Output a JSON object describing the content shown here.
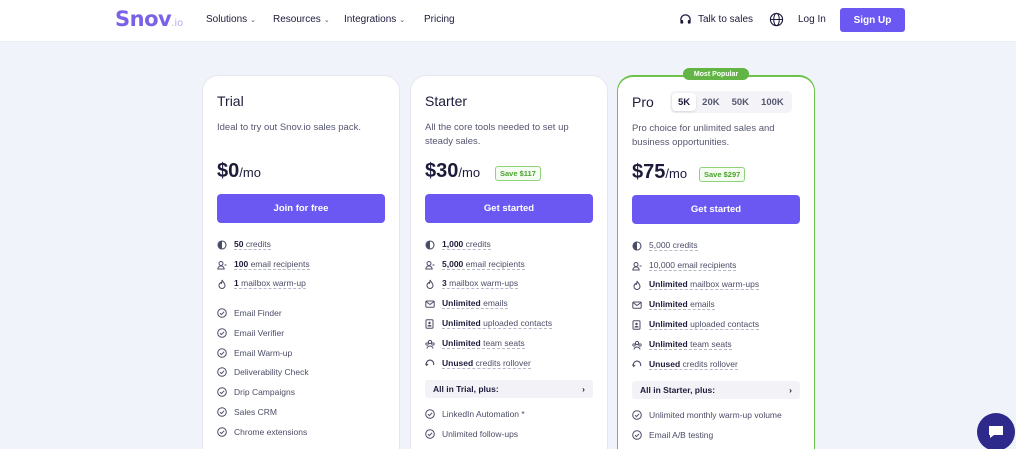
{
  "header": {
    "logo_main": "Snov",
    "logo_suffix": ".io",
    "nav": [
      "Solutions",
      "Resources",
      "Integrations",
      "Pricing"
    ],
    "talk_to_sales": "Talk to sales",
    "login": "Log In",
    "signup": "Sign Up"
  },
  "badge": "Most Popular",
  "trial": {
    "name": "Trial",
    "desc": "Ideal to try out Snov.io sales pack.",
    "price": "$0",
    "per": "/mo",
    "cta": "Join for free",
    "limits": [
      {
        "num": "50",
        "text": "credits"
      },
      {
        "num": "100",
        "text": "email recipients"
      },
      {
        "num": "1",
        "text": "mailbox warm-up"
      }
    ],
    "features": [
      "Email Finder",
      "Email Verifier",
      "Email Warm-up",
      "Deliverability Check",
      "Drip Campaigns",
      "Sales CRM",
      "Chrome extensions"
    ]
  },
  "starter": {
    "name": "Starter",
    "desc": "All the core tools needed to set up steady sales.",
    "price": "$30",
    "per": "/mo",
    "save": "Save $117",
    "cta": "Get started",
    "limits": [
      {
        "num": "1,000",
        "text": "credits"
      },
      {
        "num": "5,000",
        "text": "email recipients"
      },
      {
        "num": "3",
        "text": "mailbox warm-ups"
      },
      {
        "num": "Unlimited",
        "text": "emails"
      },
      {
        "num": "Unlimited",
        "text": "uploaded contacts"
      },
      {
        "num": "Unlimited",
        "text": "team seats"
      },
      {
        "num": "Unused",
        "text": "credits rollover"
      }
    ],
    "plus_label": "All in Trial, plus:",
    "extras": [
      "LinkedIn Automation *",
      "Unlimited follow-ups"
    ]
  },
  "pro": {
    "name": "Pro",
    "tiers": [
      "5K",
      "20K",
      "50K",
      "100K"
    ],
    "active_tier": "5K",
    "desc": "Pro choice for unlimited sales and business opportunities.",
    "price": "$75",
    "per": "/mo",
    "save": "Save $297",
    "cta": "Get started",
    "limits": [
      {
        "num": "",
        "text": "5,000 credits"
      },
      {
        "num": "",
        "text": "10,000 email recipients"
      },
      {
        "num": "Unlimited",
        "text": "mailbox warm-ups"
      },
      {
        "num": "Unlimited",
        "text": "emails"
      },
      {
        "num": "Unlimited",
        "text": "uploaded contacts"
      },
      {
        "num": "Unlimited",
        "text": "team seats"
      },
      {
        "num": "Unused",
        "text": "credits rollover"
      }
    ],
    "plus_label": "All in Starter, plus:",
    "extras": [
      "Unlimited monthly warm-up volume",
      "Email A/B testing"
    ]
  },
  "colors": {
    "accent": "#6b58f3",
    "brand": "#7b61e8",
    "popular_green": "#62b544",
    "chat_bubble": "#2d2a8c"
  }
}
